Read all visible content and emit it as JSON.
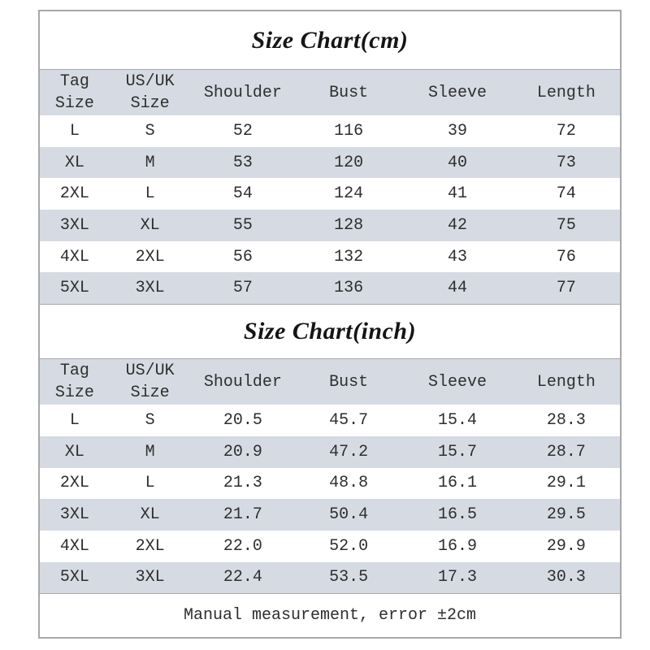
{
  "colors": {
    "band_background": "#d6dbe3",
    "border": "#a8a8a8",
    "text": "#2e2e2e",
    "page_background": "#ffffff"
  },
  "tables": [
    {
      "title": "Size Chart(cm)",
      "columns": [
        "Tag Size",
        "US/UK Size",
        "Shoulder",
        "Bust",
        "Sleeve",
        "Length"
      ],
      "rows": [
        [
          "L",
          "S",
          "52",
          "116",
          "39",
          "72"
        ],
        [
          "XL",
          "M",
          "53",
          "120",
          "40",
          "73"
        ],
        [
          "2XL",
          "L",
          "54",
          "124",
          "41",
          "74"
        ],
        [
          "3XL",
          "XL",
          "55",
          "128",
          "42",
          "75"
        ],
        [
          "4XL",
          "2XL",
          "56",
          "132",
          "43",
          "76"
        ],
        [
          "5XL",
          "3XL",
          "57",
          "136",
          "44",
          "77"
        ]
      ]
    },
    {
      "title": "Size Chart(inch)",
      "columns": [
        "Tag Size",
        "US/UK Size",
        "Shoulder",
        "Bust",
        "Sleeve",
        "Length"
      ],
      "rows": [
        [
          "L",
          "S",
          "20.5",
          "45.7",
          "15.4",
          "28.3"
        ],
        [
          "XL",
          "M",
          "20.9",
          "47.2",
          "15.7",
          "28.7"
        ],
        [
          "2XL",
          "L",
          "21.3",
          "48.8",
          "16.1",
          "29.1"
        ],
        [
          "3XL",
          "XL",
          "21.7",
          "50.4",
          "16.5",
          "29.5"
        ],
        [
          "4XL",
          "2XL",
          "22.0",
          "52.0",
          "16.9",
          "29.9"
        ],
        [
          "5XL",
          "3XL",
          "22.4",
          "53.5",
          "17.3",
          "30.3"
        ]
      ]
    }
  ],
  "footer": {
    "note": "Manual measurement, error ±2cm"
  }
}
